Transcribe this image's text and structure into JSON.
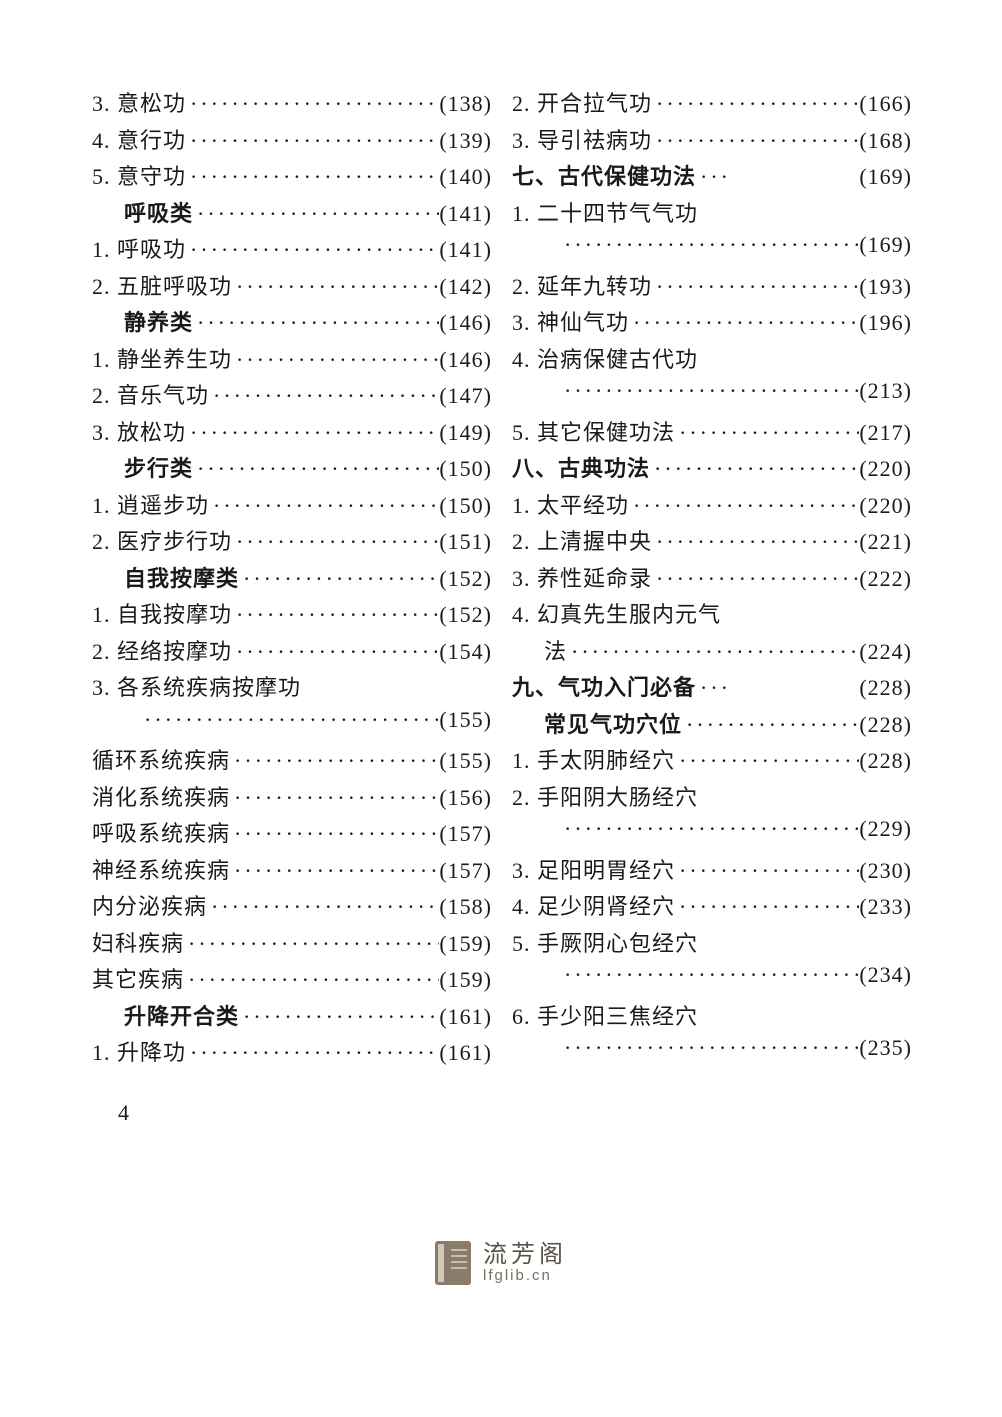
{
  "page_number": "4",
  "footer": {
    "cn": "流芳阁",
    "en": "lfglib.cn"
  },
  "dots_fill": "···································",
  "left": [
    {
      "label": "3. 意松功",
      "page": "(138)",
      "bold": false,
      "indent": 0
    },
    {
      "label": "4. 意行功",
      "page": "(139)",
      "bold": false,
      "indent": 0
    },
    {
      "label": "5. 意守功",
      "page": "(140)",
      "bold": false,
      "indent": 0
    },
    {
      "label": "呼吸类",
      "page": "(141)",
      "bold": true,
      "indent": 1
    },
    {
      "label": "1. 呼吸功",
      "page": "(141)",
      "bold": false,
      "indent": 0
    },
    {
      "label": "2. 五脏呼吸功",
      "page": "(142)",
      "bold": false,
      "indent": 0
    },
    {
      "label": "静养类",
      "page": "(146)",
      "bold": true,
      "indent": 1
    },
    {
      "label": "1. 静坐养生功",
      "page": "(146)",
      "bold": false,
      "indent": 0
    },
    {
      "label": "2. 音乐气功",
      "page": "(147)",
      "bold": false,
      "indent": 0
    },
    {
      "label": "3. 放松功",
      "page": "(149)",
      "bold": false,
      "indent": 0
    },
    {
      "label": "步行类",
      "page": "(150)",
      "bold": true,
      "indent": 1
    },
    {
      "label": "1. 逍遥步功",
      "page": "(150)",
      "bold": false,
      "indent": 0
    },
    {
      "label": "2. 医疗步行功",
      "page": "(151)",
      "bold": false,
      "indent": 0
    },
    {
      "label": "自我按摩类",
      "page": "(152)",
      "bold": true,
      "indent": 1
    },
    {
      "label": "1. 自我按摩功",
      "page": "(152)",
      "bold": false,
      "indent": 0
    },
    {
      "label": "2. 经络按摩功",
      "page": "(154)",
      "bold": false,
      "indent": 0
    },
    {
      "label": "3. 各系统疾病按摩功",
      "page": "",
      "bold": false,
      "indent": 0,
      "nodots": true
    },
    {
      "label": "",
      "page": "(155)",
      "bold": false,
      "indent": 2,
      "dotsonly": true
    },
    {
      "label": "循环系统疾病",
      "page": "(155)",
      "bold": false,
      "indent": 0
    },
    {
      "label": "消化系统疾病",
      "page": "(156)",
      "bold": false,
      "indent": 0
    },
    {
      "label": "呼吸系统疾病",
      "page": "(157)",
      "bold": false,
      "indent": 0
    },
    {
      "label": "神经系统疾病",
      "page": "(157)",
      "bold": false,
      "indent": 0
    },
    {
      "label": "内分泌疾病",
      "page": "(158)",
      "bold": false,
      "indent": 0
    },
    {
      "label": "妇科疾病",
      "page": "(159)",
      "bold": false,
      "indent": 0
    },
    {
      "label": "其它疾病",
      "page": "(159)",
      "bold": false,
      "indent": 0
    },
    {
      "label": "升降开合类",
      "page": "(161)",
      "bold": true,
      "indent": 1
    },
    {
      "label": "1. 升降功",
      "page": "(161)",
      "bold": false,
      "indent": 0
    }
  ],
  "right": [
    {
      "label": "2. 开合拉气功",
      "page": "(166)",
      "bold": false,
      "indent": 0
    },
    {
      "label": "3. 导引祛病功",
      "page": "(168)",
      "bold": false,
      "indent": 0
    },
    {
      "label": "七、古代保健功法",
      "page": "(169)",
      "bold": true,
      "indent": 0,
      "shortdots": true
    },
    {
      "label": "1. 二十四节气气功",
      "page": "",
      "bold": false,
      "indent": 0,
      "nodots": true
    },
    {
      "label": "",
      "page": "(169)",
      "bold": false,
      "indent": 2,
      "dotsonly": true
    },
    {
      "label": "2. 延年九转功",
      "page": "(193)",
      "bold": false,
      "indent": 0
    },
    {
      "label": "3. 神仙气功",
      "page": "(196)",
      "bold": false,
      "indent": 0
    },
    {
      "label": "4. 治病保健古代功",
      "page": "",
      "bold": false,
      "indent": 0,
      "nodots": true
    },
    {
      "label": "",
      "page": "(213)",
      "bold": false,
      "indent": 2,
      "dotsonly": true
    },
    {
      "label": "5. 其它保健功法",
      "page": "(217)",
      "bold": false,
      "indent": 0
    },
    {
      "label": "八、古典功法",
      "page": "(220)",
      "bold": true,
      "indent": 0
    },
    {
      "label": "1. 太平经功",
      "page": "(220)",
      "bold": false,
      "indent": 0
    },
    {
      "label": "2. 上清握中央",
      "page": "(221)",
      "bold": false,
      "indent": 0
    },
    {
      "label": "3. 养性延命录",
      "page": "(222)",
      "bold": false,
      "indent": 0
    },
    {
      "label": "4. 幻真先生服内元气",
      "page": "",
      "bold": false,
      "indent": 0,
      "nodots": true
    },
    {
      "label": "法",
      "page": "(224)",
      "bold": false,
      "indent": 1
    },
    {
      "label": "九、气功入门必备",
      "page": "(228)",
      "bold": true,
      "indent": 0,
      "shortdots": true
    },
    {
      "label": "常见气功穴位",
      "page": "(228)",
      "bold": true,
      "indent": 1
    },
    {
      "label": "1. 手太阴肺经穴",
      "page": "(228)",
      "bold": false,
      "indent": 0
    },
    {
      "label": "2. 手阳阴大肠经穴",
      "page": "",
      "bold": false,
      "indent": 0,
      "nodots": true
    },
    {
      "label": "",
      "page": "(229)",
      "bold": false,
      "indent": 2,
      "dotsonly": true
    },
    {
      "label": "3. 足阳明胃经穴",
      "page": "(230)",
      "bold": false,
      "indent": 0
    },
    {
      "label": "4. 足少阴肾经穴",
      "page": "(233)",
      "bold": false,
      "indent": 0
    },
    {
      "label": "5. 手厥阴心包经穴",
      "page": "",
      "bold": false,
      "indent": 0,
      "nodots": true
    },
    {
      "label": "",
      "page": "(234)",
      "bold": false,
      "indent": 2,
      "dotsonly": true
    },
    {
      "label": "6. 手少阳三焦经穴",
      "page": "",
      "bold": false,
      "indent": 0,
      "nodots": true
    },
    {
      "label": "",
      "page": "(235)",
      "bold": false,
      "indent": 2,
      "dotsonly": true
    }
  ]
}
